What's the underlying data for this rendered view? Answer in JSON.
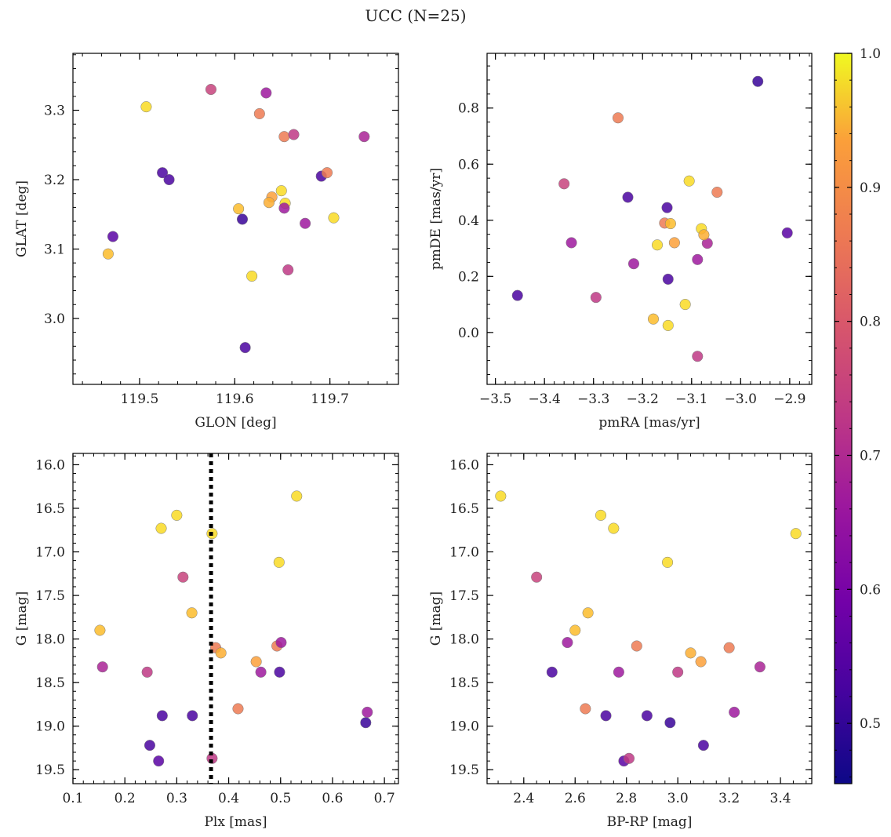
{
  "title": "UCC (N=25)",
  "colormap": {
    "name": "plasma",
    "range": [
      0.455,
      1.0
    ],
    "ticks": [
      0.5,
      0.6,
      0.7,
      0.8,
      0.9,
      1.0
    ],
    "tick_labels": [
      "0.5",
      "0.6",
      "0.7",
      "0.8",
      "0.9",
      "1.0"
    ]
  },
  "members": [
    {
      "glon": 119.507,
      "glat": 3.305,
      "pmra": -3.105,
      "pmde": 0.54,
      "plx": 0.531,
      "g": 16.36,
      "bprp": 2.31,
      "prob": 0.96
    },
    {
      "glon": 119.575,
      "glat": 3.33,
      "pmra": -3.36,
      "pmde": 0.53,
      "plx": 0.312,
      "g": 17.29,
      "bprp": 2.45,
      "prob": 0.72
    },
    {
      "glon": 119.633,
      "glat": 3.325,
      "pmra": -3.345,
      "pmde": 0.32,
      "plx": 0.462,
      "g": 18.38,
      "bprp": 2.77,
      "prob": 0.64
    },
    {
      "glon": 119.626,
      "glat": 3.295,
      "pmra": -3.25,
      "pmde": 0.765,
      "plx": 0.418,
      "g": 18.8,
      "bprp": 2.64,
      "prob": 0.82
    },
    {
      "glon": 119.652,
      "glat": 3.262,
      "pmra": -3.048,
      "pmde": 0.5,
      "plx": 0.493,
      "g": 18.08,
      "bprp": 2.84,
      "prob": 0.82
    },
    {
      "glon": 119.662,
      "glat": 3.265,
      "pmra": -3.295,
      "pmde": 0.125,
      "plx": 0.243,
      "g": 18.38,
      "bprp": 3.0,
      "prob": 0.7
    },
    {
      "glon": 119.736,
      "glat": 3.262,
      "pmra": -3.068,
      "pmde": 0.318,
      "plx": 0.157,
      "g": 18.32,
      "bprp": 3.32,
      "prob": 0.66
    },
    {
      "glon": 119.524,
      "glat": 3.21,
      "pmra": -3.148,
      "pmde": 0.19,
      "plx": 0.33,
      "g": 18.88,
      "bprp": 2.88,
      "prob": 0.52
    },
    {
      "glon": 119.531,
      "glat": 3.2,
      "pmra": -3.23,
      "pmde": 0.482,
      "plx": 0.272,
      "g": 18.88,
      "bprp": 2.72,
      "prob": 0.52
    },
    {
      "glon": 119.691,
      "glat": 3.205,
      "pmra": -3.15,
      "pmde": 0.445,
      "plx": 0.498,
      "g": 18.38,
      "bprp": 2.51,
      "prob": 0.52
    },
    {
      "glon": 119.697,
      "glat": 3.21,
      "pmra": -3.155,
      "pmde": 0.39,
      "plx": 0.375,
      "g": 18.1,
      "bprp": 3.2,
      "prob": 0.82
    },
    {
      "glon": 119.649,
      "glat": 3.184,
      "pmra": -3.17,
      "pmde": 0.312,
      "plx": 0.27,
      "g": 16.73,
      "bprp": 2.75,
      "prob": 0.96
    },
    {
      "glon": 119.653,
      "glat": 3.166,
      "pmra": -3.08,
      "pmde": 0.37,
      "plx": 0.497,
      "g": 17.12,
      "bprp": 2.96,
      "prob": 0.96
    },
    {
      "glon": 119.639,
      "glat": 3.175,
      "pmra": -3.135,
      "pmde": 0.32,
      "plx": 0.453,
      "g": 18.26,
      "bprp": 3.09,
      "prob": 0.88
    },
    {
      "glon": 119.636,
      "glat": 3.167,
      "pmra": -3.075,
      "pmde": 0.348,
      "plx": 0.385,
      "g": 18.16,
      "bprp": 3.05,
      "prob": 0.9
    },
    {
      "glon": 119.604,
      "glat": 3.158,
      "pmra": -3.143,
      "pmde": 0.388,
      "plx": 0.329,
      "g": 17.7,
      "bprp": 2.65,
      "prob": 0.92
    },
    {
      "glon": 119.652,
      "glat": 3.159,
      "pmra": -3.088,
      "pmde": 0.26,
      "plx": 0.501,
      "g": 18.04,
      "bprp": 2.57,
      "prob": 0.64
    },
    {
      "glon": 119.608,
      "glat": 3.143,
      "pmra": -2.965,
      "pmde": 0.895,
      "plx": 0.664,
      "g": 18.96,
      "bprp": 2.97,
      "prob": 0.5
    },
    {
      "glon": 119.704,
      "glat": 3.145,
      "pmra": -3.113,
      "pmde": 0.1,
      "plx": 0.3,
      "g": 16.58,
      "bprp": 2.7,
      "prob": 0.96
    },
    {
      "glon": 119.674,
      "glat": 3.137,
      "pmra": -3.218,
      "pmde": 0.245,
      "plx": 0.667,
      "g": 18.84,
      "bprp": 3.22,
      "prob": 0.64
    },
    {
      "glon": 119.472,
      "glat": 3.118,
      "pmra": -2.905,
      "pmde": 0.355,
      "plx": 0.265,
      "g": 19.4,
      "bprp": 2.79,
      "prob": 0.54
    },
    {
      "glon": 119.467,
      "glat": 3.093,
      "pmra": -3.178,
      "pmde": 0.048,
      "plx": 0.152,
      "g": 17.9,
      "bprp": 2.6,
      "prob": 0.92
    },
    {
      "glon": 119.618,
      "glat": 3.061,
      "pmra": -3.148,
      "pmde": 0.025,
      "plx": 0.368,
      "g": 16.79,
      "bprp": 3.46,
      "prob": 0.96
    },
    {
      "glon": 119.656,
      "glat": 3.07,
      "pmra": -3.088,
      "pmde": -0.085,
      "plx": 0.368,
      "g": 19.37,
      "bprp": 2.81,
      "prob": 0.7
    },
    {
      "glon": 119.611,
      "glat": 2.958,
      "pmra": -3.455,
      "pmde": 0.132,
      "plx": 0.248,
      "g": 19.22,
      "bprp": 3.1,
      "prob": 0.52
    }
  ],
  "chart_data": [
    {
      "type": "scatter",
      "id": "glon-glat",
      "xkey": "glon",
      "ykey": "glat",
      "xlabel": "GLON [deg]",
      "ylabel": "GLAT [deg]",
      "xlim": [
        119.43,
        119.772
      ],
      "ylim": [
        2.905,
        3.382
      ],
      "xticks": [
        119.5,
        119.6,
        119.7
      ],
      "xtick_labels": [
        "119.5",
        "119.6",
        "119.7"
      ],
      "yticks": [
        3.0,
        3.1,
        3.2,
        3.3
      ],
      "ytick_labels": [
        "3.0",
        "3.1",
        "3.2",
        "3.3"
      ],
      "xminor": 0.02,
      "yminor": 0.02,
      "invert_y": false
    },
    {
      "type": "scatter",
      "id": "pm",
      "xkey": "pmra",
      "ykey": "pmde",
      "xlabel": "pmRA [mas/yr]",
      "ylabel": "pmDE [mas/yr]",
      "xlim": [
        -3.517,
        -2.855
      ],
      "ylim": [
        -0.185,
        0.995
      ],
      "xticks": [
        -3.5,
        -3.4,
        -3.3,
        -3.2,
        -3.1,
        -3.0,
        -2.9
      ],
      "xtick_labels": [
        "−3.5",
        "−3.4",
        "−3.3",
        "−3.2",
        "−3.1",
        "−3.0",
        "−2.9"
      ],
      "yticks": [
        0.0,
        0.2,
        0.4,
        0.6,
        0.8
      ],
      "ytick_labels": [
        "0.0",
        "0.2",
        "0.4",
        "0.6",
        "0.8"
      ],
      "xminor": 0.02,
      "yminor": 0.05,
      "invert_y": false
    },
    {
      "type": "scatter",
      "id": "plx-g",
      "xkey": "plx",
      "ykey": "g",
      "xlabel": "Plx [mas]",
      "ylabel": "G [mag]",
      "xlim": [
        0.1,
        0.727
      ],
      "ylim": [
        15.87,
        19.66
      ],
      "xticks": [
        0.1,
        0.2,
        0.3,
        0.4,
        0.5,
        0.6,
        0.7
      ],
      "xtick_labels": [
        "0.1",
        "0.2",
        "0.3",
        "0.4",
        "0.5",
        "0.6",
        "0.7"
      ],
      "yticks": [
        16.0,
        16.5,
        17.0,
        17.5,
        18.0,
        18.5,
        19.0,
        19.5
      ],
      "ytick_labels": [
        "16.0",
        "16.5",
        "17.0",
        "17.5",
        "18.0",
        "18.5",
        "19.0",
        "19.5"
      ],
      "xminor": 0.02,
      "yminor": 0.1,
      "invert_y": true,
      "vline": {
        "x": 0.366,
        "style": "dotted"
      }
    },
    {
      "type": "scatter",
      "id": "cmd",
      "xkey": "bprp",
      "ykey": "g",
      "xlabel": "BP-RP [mag]",
      "ylabel": "G [mag]",
      "xlim": [
        2.257,
        3.522
      ],
      "ylim": [
        15.87,
        19.66
      ],
      "xticks": [
        2.4,
        2.6,
        2.8,
        3.0,
        3.2,
        3.4
      ],
      "xtick_labels": [
        "2.4",
        "2.6",
        "2.8",
        "3.0",
        "3.2",
        "3.4"
      ],
      "yticks": [
        16.0,
        16.5,
        17.0,
        17.5,
        18.0,
        18.5,
        19.0,
        19.5
      ],
      "ytick_labels": [
        "16.0",
        "16.5",
        "17.0",
        "17.5",
        "18.0",
        "18.5",
        "19.0",
        "19.5"
      ],
      "xminor": 0.05,
      "yminor": 0.1,
      "invert_y": true
    }
  ]
}
